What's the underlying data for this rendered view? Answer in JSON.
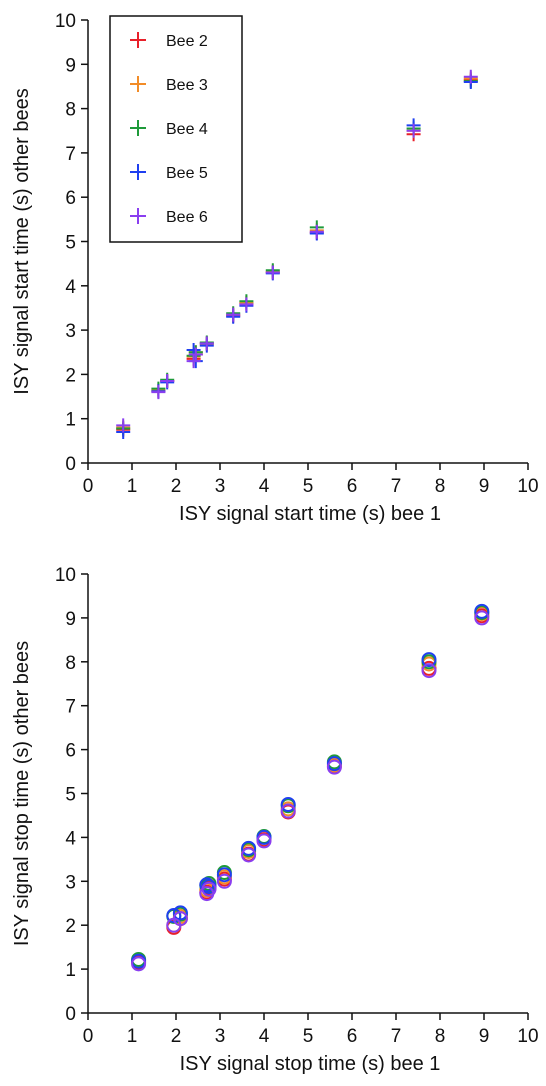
{
  "figure": {
    "background": "#ffffff",
    "axis_color": "#111111"
  },
  "series_styles": [
    {
      "name": "Bee 2",
      "color": "#e8202a"
    },
    {
      "name": "Bee 3",
      "color": "#f28c28"
    },
    {
      "name": "Bee 4",
      "color": "#1f9a3a"
    },
    {
      "name": "Bee 5",
      "color": "#1f3ff0"
    },
    {
      "name": "Bee 6",
      "color": "#8a3ef0"
    }
  ],
  "chart_data": [
    {
      "type": "scatter",
      "marker": "plus",
      "title": "",
      "xlabel": "ISY signal start time (s) bee 1",
      "ylabel": "ISY signal start time (s) other bees",
      "xlim": [
        0,
        10
      ],
      "ylim": [
        0,
        10
      ],
      "xticks": [
        0,
        1,
        2,
        3,
        4,
        5,
        6,
        7,
        8,
        9,
        10
      ],
      "yticks": [
        0,
        1,
        2,
        3,
        4,
        5,
        6,
        7,
        8,
        9,
        10
      ],
      "xtick_labels": [
        "0",
        "1",
        "2",
        "3",
        "4",
        "5",
        "6",
        "7",
        "8",
        "9",
        "10"
      ],
      "ytick_labels": [
        "0",
        "1",
        "2",
        "3",
        "4",
        "5",
        "6",
        "7",
        "8",
        "9",
        "10"
      ],
      "grid": false,
      "legend": {
        "position": "top-left",
        "entries": [
          "Bee 2",
          "Bee 3",
          "Bee 4",
          "Bee 5",
          "Bee 6"
        ]
      },
      "series": [
        {
          "name": "Bee 2",
          "color": "#e8202a",
          "x": [
            0.8,
            1.6,
            1.8,
            2.4,
            2.45,
            2.7,
            3.3,
            3.6,
            4.2,
            5.2,
            7.4,
            8.7
          ],
          "y": [
            0.75,
            1.62,
            1.85,
            2.35,
            2.45,
            2.7,
            3.32,
            3.6,
            4.3,
            5.2,
            7.42,
            8.65
          ]
        },
        {
          "name": "Bee 3",
          "color": "#f28c28",
          "x": [
            0.8,
            1.6,
            1.8,
            2.4,
            2.45,
            2.7,
            3.3,
            3.6,
            4.2,
            5.2,
            7.4,
            8.7
          ],
          "y": [
            0.8,
            1.65,
            1.85,
            2.4,
            2.5,
            2.68,
            3.35,
            3.62,
            4.32,
            5.25,
            7.5,
            8.68
          ]
        },
        {
          "name": "Bee 4",
          "color": "#1f9a3a",
          "x": [
            0.8,
            1.6,
            1.8,
            2.4,
            2.45,
            2.7,
            3.3,
            3.6,
            4.2,
            5.2,
            7.4,
            8.7
          ],
          "y": [
            0.78,
            1.68,
            1.88,
            2.42,
            2.5,
            2.72,
            3.38,
            3.65,
            4.35,
            5.32,
            7.55,
            8.62
          ]
        },
        {
          "name": "Bee 5",
          "color": "#1f3ff0",
          "x": [
            0.8,
            1.6,
            1.8,
            2.4,
            2.45,
            2.7,
            3.3,
            3.6,
            4.2,
            5.2,
            7.4,
            8.7
          ],
          "y": [
            0.7,
            1.62,
            1.82,
            2.55,
            2.3,
            2.65,
            3.3,
            3.55,
            4.28,
            5.18,
            7.62,
            8.6
          ]
        },
        {
          "name": "Bee 6",
          "color": "#8a3ef0",
          "x": [
            0.8,
            1.6,
            1.8,
            2.4,
            2.45,
            2.7,
            3.3,
            3.6,
            4.2,
            5.2,
            7.4,
            8.7
          ],
          "y": [
            0.85,
            1.6,
            1.85,
            2.3,
            2.45,
            2.7,
            3.35,
            3.58,
            4.3,
            5.22,
            7.5,
            8.72
          ]
        }
      ]
    },
    {
      "type": "scatter",
      "marker": "circle",
      "title": "",
      "xlabel": "ISY signal stop time (s) bee 1",
      "ylabel": "ISY signal stop time (s) other bees",
      "xlim": [
        0,
        10
      ],
      "ylim": [
        0,
        10
      ],
      "xticks": [
        0,
        1,
        2,
        3,
        4,
        5,
        6,
        7,
        8,
        9,
        10
      ],
      "yticks": [
        0,
        1,
        2,
        3,
        4,
        5,
        6,
        7,
        8,
        9,
        10
      ],
      "xtick_labels": [
        "0",
        "1",
        "2",
        "3",
        "4",
        "5",
        "6",
        "7",
        "8",
        "9",
        "10"
      ],
      "ytick_labels": [
        "0",
        "1",
        "2",
        "3",
        "4",
        "5",
        "6",
        "7",
        "8",
        "9",
        "10"
      ],
      "grid": false,
      "series": [
        {
          "name": "Bee 2",
          "color": "#e8202a",
          "x": [
            1.15,
            1.95,
            2.1,
            2.7,
            2.75,
            3.1,
            3.65,
            4.0,
            4.55,
            5.6,
            7.75,
            8.95
          ],
          "y": [
            1.15,
            1.95,
            2.15,
            2.75,
            2.85,
            3.05,
            3.62,
            3.95,
            4.58,
            5.62,
            7.85,
            9.05
          ]
        },
        {
          "name": "Bee 3",
          "color": "#f28c28",
          "x": [
            1.15,
            1.95,
            2.1,
            2.7,
            2.75,
            3.1,
            3.65,
            4.0,
            4.55,
            5.6,
            7.75,
            8.95
          ],
          "y": [
            1.2,
            2.0,
            2.2,
            2.8,
            2.9,
            3.1,
            3.68,
            4.0,
            4.65,
            5.65,
            7.95,
            9.1
          ]
        },
        {
          "name": "Bee 4",
          "color": "#1f9a3a",
          "x": [
            1.15,
            1.95,
            2.1,
            2.7,
            2.75,
            3.1,
            3.65,
            4.0,
            4.55,
            5.6,
            7.75,
            8.95
          ],
          "y": [
            1.22,
            2.2,
            2.25,
            2.9,
            2.95,
            3.2,
            3.72,
            4.02,
            4.72,
            5.72,
            8.0,
            9.12
          ]
        },
        {
          "name": "Bee 5",
          "color": "#1f3ff0",
          "x": [
            1.15,
            1.95,
            2.1,
            2.7,
            2.75,
            3.1,
            3.65,
            4.0,
            4.55,
            5.6,
            7.75,
            8.95
          ],
          "y": [
            1.18,
            2.22,
            2.28,
            2.92,
            2.88,
            3.15,
            3.75,
            4.0,
            4.75,
            5.68,
            8.05,
            9.15
          ]
        },
        {
          "name": "Bee 6",
          "color": "#8a3ef0",
          "x": [
            1.15,
            1.95,
            2.1,
            2.7,
            2.75,
            3.1,
            3.65,
            4.0,
            4.55,
            5.6,
            7.75,
            8.95
          ],
          "y": [
            1.12,
            2.0,
            2.15,
            2.72,
            2.82,
            3.0,
            3.6,
            3.92,
            4.6,
            5.6,
            7.8,
            9.0
          ]
        }
      ]
    }
  ]
}
